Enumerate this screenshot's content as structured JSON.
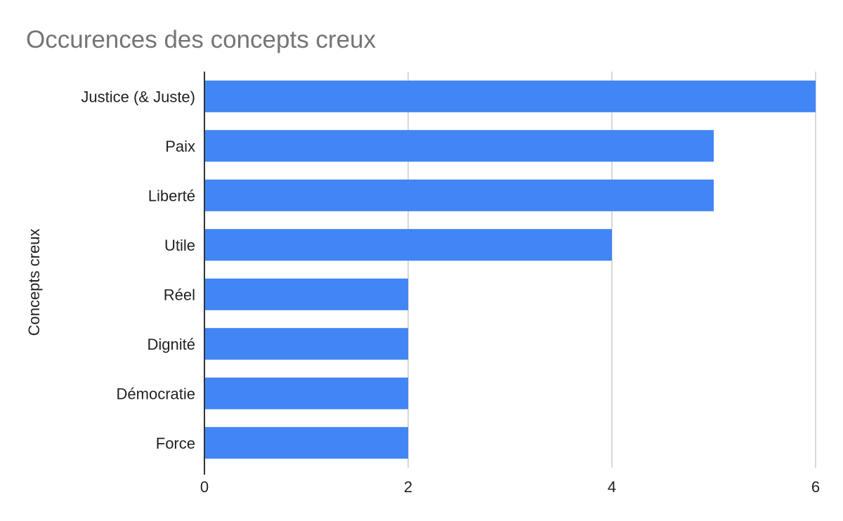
{
  "chart_data": {
    "type": "bar",
    "orientation": "horizontal",
    "title": "Occurences des concepts creux",
    "xlabel": "",
    "ylabel": "Concepts creux",
    "categories": [
      "Justice (& Juste)",
      "Paix",
      "Liberté",
      "Utile",
      "Réel",
      "Dignité",
      "Démocratie",
      "Force"
    ],
    "values": [
      6,
      5,
      5,
      4,
      2,
      2,
      2,
      2
    ],
    "xlim": [
      0,
      6
    ],
    "xticks": [
      0,
      2,
      4,
      6
    ],
    "grid": true,
    "legend": "none",
    "bar_color": "#4285f4"
  }
}
